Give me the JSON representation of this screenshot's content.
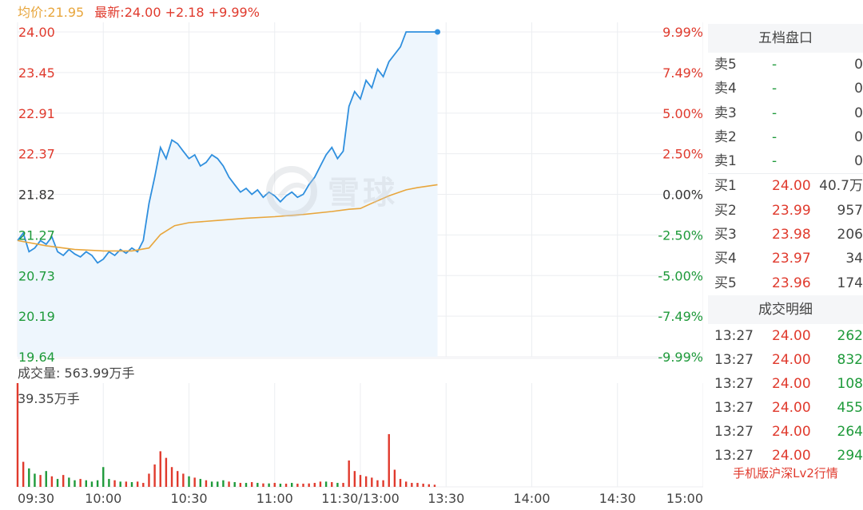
{
  "header": {
    "avg_text": "均价:21.95",
    "last_text": "最新:24.00  +2.18  +9.99%"
  },
  "volume": {
    "label": "成交量: 563.99万手",
    "max_label": "39.35万手"
  },
  "watermark": {
    "text": "雪球"
  },
  "panel": {
    "order_book_title": "五档盘口",
    "asks": [
      {
        "label": "卖5",
        "price": "-",
        "vol": "0"
      },
      {
        "label": "卖4",
        "price": "-",
        "vol": "0"
      },
      {
        "label": "卖3",
        "price": "-",
        "vol": "0"
      },
      {
        "label": "卖2",
        "price": "-",
        "vol": "0"
      },
      {
        "label": "卖1",
        "price": "-",
        "vol": "0"
      }
    ],
    "bids": [
      {
        "label": "买1",
        "price": "24.00",
        "vol": "40.7万"
      },
      {
        "label": "买2",
        "price": "23.99",
        "vol": "957"
      },
      {
        "label": "买3",
        "price": "23.98",
        "vol": "206"
      },
      {
        "label": "买4",
        "price": "23.97",
        "vol": "34"
      },
      {
        "label": "买5",
        "price": "23.96",
        "vol": "174"
      }
    ],
    "trades_title": "成交明细",
    "trades": [
      {
        "time": "13:27",
        "price": "24.00",
        "vol": "262"
      },
      {
        "time": "13:27",
        "price": "24.00",
        "vol": "832"
      },
      {
        "time": "13:27",
        "price": "24.00",
        "vol": "108"
      },
      {
        "time": "13:27",
        "price": "24.00",
        "vol": "455"
      },
      {
        "time": "13:27",
        "price": "24.00",
        "vol": "264"
      },
      {
        "time": "13:27",
        "price": "24.00",
        "vol": "294"
      }
    ],
    "promo": "手机版沪深Lv2行情"
  },
  "colors": {
    "up": "#e03a2d",
    "down": "#1e9a3a",
    "price_line": "#2f8fde",
    "avg_line": "#e8a63c",
    "fill": "#eef6fd",
    "grid": "#eceef1"
  },
  "chart_data": {
    "type": "line",
    "prev_close": 21.82,
    "y_ticks_price": [
      "24.00",
      "23.45",
      "22.91",
      "22.37",
      "21.82",
      "21.27",
      "20.73",
      "20.19",
      "19.64"
    ],
    "y_ticks_pct": [
      "9.99%",
      "7.49%",
      "5.00%",
      "2.50%",
      "0.00%",
      "-2.50%",
      "-5.00%",
      "-7.49%",
      "-9.99%"
    ],
    "ylim": [
      19.64,
      24.0
    ],
    "x_ticks": [
      "09:30",
      "10:00",
      "10:30",
      "11:00",
      "11:30/13:00",
      "13:30",
      "14:00",
      "14:30",
      "15:00"
    ],
    "x_tick_minutes": [
      0,
      30,
      60,
      90,
      120,
      150,
      180,
      210,
      240
    ],
    "x_range_minutes": [
      0,
      240
    ],
    "series": [
      {
        "name": "",
        "minutes": [
          0,
          2,
          4,
          6,
          8,
          10,
          12,
          14,
          16,
          18,
          20,
          22,
          24,
          26,
          28,
          30,
          32,
          34,
          36,
          38,
          40,
          42,
          44,
          46,
          48,
          50,
          52,
          54,
          56,
          58,
          60,
          62,
          64,
          66,
          68,
          70,
          72,
          74,
          76,
          78,
          80,
          82,
          84,
          86,
          88,
          90,
          92,
          94,
          96,
          98,
          100,
          102,
          104,
          106,
          108,
          110,
          112,
          114,
          116,
          118,
          120,
          122,
          124,
          126,
          128,
          130,
          132,
          134,
          136,
          138,
          140,
          142,
          144,
          146,
          147
        ],
        "values": [
          21.2,
          21.3,
          21.05,
          21.1,
          21.2,
          21.15,
          21.25,
          21.05,
          21.0,
          21.08,
          21.02,
          20.98,
          21.05,
          21.0,
          20.9,
          20.95,
          21.05,
          21.0,
          21.08,
          21.03,
          21.1,
          21.05,
          21.2,
          21.7,
          22.05,
          22.45,
          22.3,
          22.55,
          22.5,
          22.4,
          22.3,
          22.35,
          22.2,
          22.25,
          22.35,
          22.3,
          22.2,
          22.05,
          21.95,
          21.85,
          21.9,
          21.82,
          21.88,
          21.78,
          21.85,
          21.8,
          21.72,
          21.8,
          21.85,
          21.78,
          21.82,
          21.95,
          22.05,
          22.2,
          22.35,
          22.45,
          22.3,
          22.4,
          23.0,
          23.2,
          23.1,
          23.35,
          23.25,
          23.5,
          23.4,
          23.6,
          23.7,
          23.8,
          24.0,
          24.0,
          24.0,
          24.0,
          24.0,
          24.0,
          24.0
        ]
      },
      {
        "name": "",
        "minutes": [
          0,
          10,
          20,
          30,
          40,
          46,
          50,
          55,
          60,
          70,
          80,
          90,
          100,
          110,
          116,
          120,
          124,
          130,
          136,
          140,
          147
        ],
        "values": [
          21.2,
          21.13,
          21.08,
          21.06,
          21.06,
          21.1,
          21.28,
          21.4,
          21.44,
          21.47,
          21.5,
          21.52,
          21.55,
          21.59,
          21.62,
          21.63,
          21.7,
          21.8,
          21.88,
          21.91,
          21.95
        ]
      }
    ],
    "volume_axis_max": 39.35,
    "volume": {
      "minutes": [
        0,
        2,
        4,
        6,
        8,
        10,
        12,
        14,
        16,
        18,
        20,
        22,
        24,
        26,
        28,
        30,
        32,
        34,
        36,
        38,
        40,
        42,
        44,
        46,
        48,
        50,
        52,
        54,
        56,
        58,
        60,
        62,
        64,
        66,
        68,
        70,
        72,
        74,
        76,
        78,
        80,
        82,
        84,
        86,
        88,
        90,
        92,
        94,
        96,
        98,
        100,
        102,
        104,
        106,
        108,
        110,
        112,
        114,
        116,
        118,
        120,
        122,
        124,
        126,
        128,
        130,
        132,
        134,
        136,
        138,
        140,
        142,
        144,
        146
      ],
      "values": [
        39.35,
        9.5,
        7.0,
        5.0,
        4.5,
        6.0,
        4.0,
        3.0,
        4.5,
        3.5,
        2.5,
        3.0,
        2.5,
        2.0,
        2.5,
        7.5,
        3.0,
        2.5,
        2.0,
        2.0,
        1.8,
        2.0,
        1.5,
        5.0,
        8.5,
        13.5,
        11.0,
        7.5,
        6.0,
        5.0,
        4.0,
        3.5,
        3.0,
        2.5,
        2.0,
        2.0,
        2.5,
        2.0,
        1.8,
        1.5,
        1.5,
        1.8,
        1.5,
        1.3,
        1.3,
        1.5,
        1.2,
        1.2,
        1.5,
        1.2,
        1.2,
        1.3,
        1.5,
        2.0,
        2.0,
        1.8,
        1.5,
        1.5,
        10.0,
        6.0,
        4.5,
        4.0,
        3.5,
        2.5,
        2.5,
        20.0,
        6.5,
        3.0,
        2.0,
        1.5,
        1.5,
        1.2,
        1.0,
        0.8
      ],
      "direction": [
        "up",
        "up",
        "down",
        "down",
        "up",
        "down",
        "up",
        "down",
        "up",
        "down",
        "down",
        "up",
        "down",
        "down",
        "down",
        "down",
        "down",
        "up",
        "down",
        "up",
        "down",
        "up",
        "up",
        "up",
        "up",
        "up",
        "up",
        "up",
        "up",
        "up",
        "down",
        "up",
        "down",
        "up",
        "down",
        "down",
        "down",
        "up",
        "down",
        "up",
        "down",
        "up",
        "down",
        "up",
        "down",
        "up",
        "down",
        "up",
        "down",
        "up",
        "up",
        "up",
        "up",
        "up",
        "down",
        "up",
        "down",
        "up",
        "up",
        "up",
        "up",
        "up",
        "up",
        "up",
        "up",
        "up",
        "up",
        "up",
        "up",
        "up",
        "up",
        "up",
        "up",
        "up"
      ]
    }
  }
}
